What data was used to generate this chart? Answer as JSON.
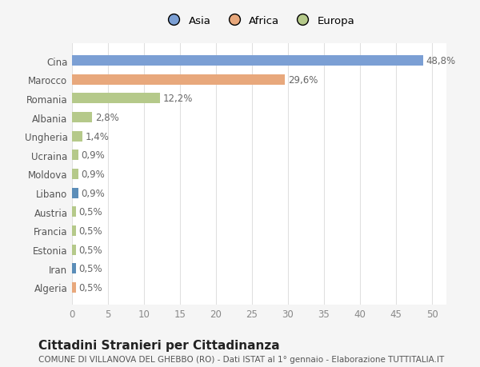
{
  "categories": [
    "Algeria",
    "Iran",
    "Estonia",
    "Francia",
    "Austria",
    "Libano",
    "Moldova",
    "Ucraina",
    "Ungheria",
    "Albania",
    "Romania",
    "Marocco",
    "Cina"
  ],
  "values": [
    0.5,
    0.5,
    0.5,
    0.5,
    0.5,
    0.9,
    0.9,
    0.9,
    1.4,
    2.8,
    12.2,
    29.6,
    48.8
  ],
  "colors": [
    "#e8a87c",
    "#5b8db8",
    "#b5c98a",
    "#b5c98a",
    "#b5c98a",
    "#5b8db8",
    "#b5c98a",
    "#b5c98a",
    "#b5c98a",
    "#b5c98a",
    "#b5c98a",
    "#e8a87c",
    "#7b9fd4"
  ],
  "labels": [
    "0,5%",
    "0,5%",
    "0,5%",
    "0,5%",
    "0,5%",
    "0,9%",
    "0,9%",
    "0,9%",
    "1,4%",
    "2,8%",
    "12,2%",
    "29,6%",
    "48,8%"
  ],
  "legend_labels": [
    "Asia",
    "Africa",
    "Europa"
  ],
  "legend_colors": [
    "#7b9fd4",
    "#e8a87c",
    "#b5c98a"
  ],
  "title": "Cittadini Stranieri per Cittadinanza",
  "subtitle": "COMUNE DI VILLANOVA DEL GHEBBO (RO) - Dati ISTAT al 1° gennaio - Elaborazione TUTTITALIA.IT",
  "xlim": [
    0,
    52
  ],
  "xticks": [
    0,
    5,
    10,
    15,
    20,
    25,
    30,
    35,
    40,
    45,
    50
  ],
  "background_color": "#f5f5f5",
  "plot_background": "#ffffff",
  "grid_color": "#e0e0e0",
  "bar_height": 0.55,
  "label_fontsize": 8.5,
  "tick_fontsize": 8.5,
  "title_fontsize": 11,
  "subtitle_fontsize": 7.5
}
